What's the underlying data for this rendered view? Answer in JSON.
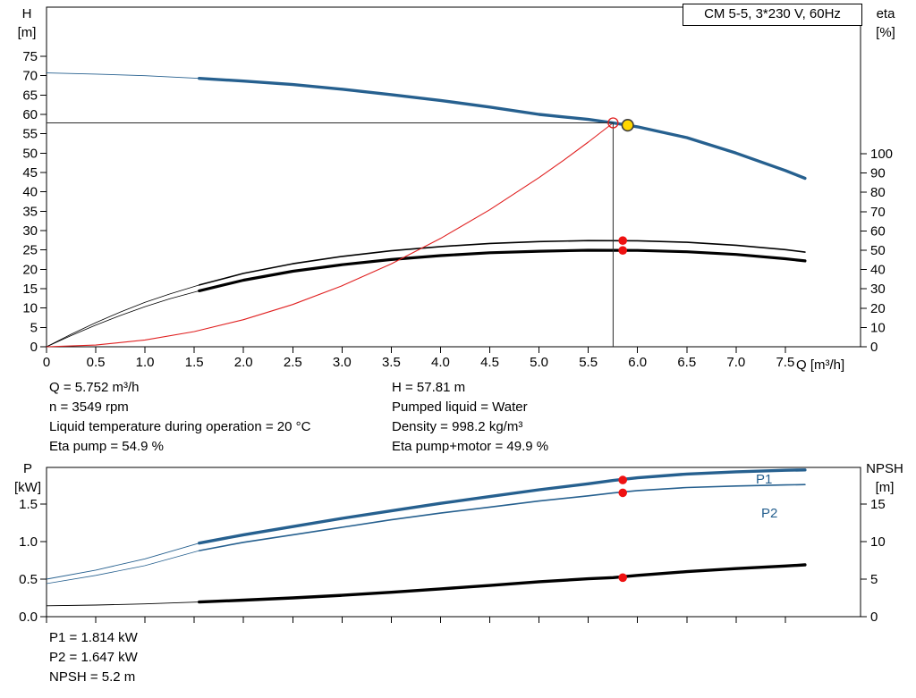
{
  "title_box": {
    "label": "CM 5-5, 3*230 V, 60Hz"
  },
  "colors": {
    "curve_blue": "#26608f",
    "curve_red": "#e02020",
    "marker_red": "#ee1111",
    "marker_yellow": "#ffd800",
    "marker_ring": "#3c3c3c",
    "line_black": "#000000",
    "duty_line": "#2a2a2a"
  },
  "duty_info": {
    "left": [
      "Q = 5.752 m³/h",
      "n = 3549 rpm",
      "Liquid temperature during operation = 20 °C",
      "Eta pump = 54.9 %"
    ],
    "right": [
      "H = 57.81 m",
      "Pumped liquid = Water",
      "Density = 998.2 kg/m³",
      "Eta pump+motor = 49.9 %"
    ]
  },
  "power_info": [
    "P1 = 1.814 kW",
    "P2 = 1.647 kW",
    "NPSH = 5.2 m"
  ],
  "series_labels": {
    "p1": "P1",
    "p2": "P2"
  },
  "chart_data": [
    {
      "type": "line",
      "title": "CM 5-5, 3*230 V, 60Hz",
      "x_axis": {
        "label": "Q [m³/h]",
        "min": 0,
        "max": 8.264,
        "show_labels": true,
        "ticks": [
          [
            0,
            "0"
          ],
          [
            0.5,
            "0.5"
          ],
          [
            1,
            "1.0"
          ],
          [
            1.5,
            "1.5"
          ],
          [
            2,
            "2.0"
          ],
          [
            2.5,
            "2.5"
          ],
          [
            3,
            "3.0"
          ],
          [
            3.5,
            "3.5"
          ],
          [
            4,
            "4.0"
          ],
          [
            4.5,
            "4.5"
          ],
          [
            5,
            "5.0"
          ],
          [
            5.5,
            "5.5"
          ],
          [
            6,
            "6.0"
          ],
          [
            6.5,
            "6.5"
          ],
          [
            7,
            "7.0"
          ],
          [
            7.5,
            "7.5"
          ]
        ]
      },
      "y_left": {
        "title": "H",
        "unit": "[m]",
        "min": 0,
        "max": 87.69,
        "ticks": [
          [
            0,
            "0"
          ],
          [
            5,
            "5"
          ],
          [
            10,
            "10"
          ],
          [
            15,
            "15"
          ],
          [
            20,
            "20"
          ],
          [
            25,
            "25"
          ],
          [
            30,
            "30"
          ],
          [
            35,
            "35"
          ],
          [
            40,
            "40"
          ],
          [
            45,
            "45"
          ],
          [
            50,
            "50"
          ],
          [
            55,
            "55"
          ],
          [
            60,
            "60"
          ],
          [
            65,
            "65"
          ],
          [
            70,
            "70"
          ],
          [
            75,
            "75"
          ]
        ]
      },
      "y_right": {
        "title": "eta",
        "unit": "[%]",
        "min": 0,
        "max": 175.9,
        "ticks": [
          [
            0,
            "0"
          ],
          [
            10,
            "10"
          ],
          [
            20,
            "20"
          ],
          [
            30,
            "30"
          ],
          [
            40,
            "40"
          ],
          [
            50,
            "50"
          ],
          [
            60,
            "60"
          ],
          [
            70,
            "70"
          ],
          [
            80,
            "80"
          ],
          [
            90,
            "90"
          ],
          [
            100,
            "100"
          ]
        ]
      },
      "duty_lines": {
        "q": 5.752,
        "v": 57.81,
        "axis": "left"
      },
      "series": [
        {
          "name": "eta-pump-curve",
          "axis": "right",
          "color": "#000000",
          "width": 1.6,
          "thin_width": 0.8,
          "thin_until": 1.55,
          "points": [
            [
              0,
              0
            ],
            [
              0.25,
              6.5
            ],
            [
              0.5,
              12.5
            ],
            [
              0.75,
              18
            ],
            [
              1,
              23
            ],
            [
              1.25,
              27.3
            ],
            [
              1.55,
              32
            ],
            [
              2,
              38
            ],
            [
              2.5,
              43
            ],
            [
              3,
              46.8
            ],
            [
              3.5,
              49.7
            ],
            [
              4,
              51.9
            ],
            [
              4.5,
              53.5
            ],
            [
              5,
              54.5
            ],
            [
              5.5,
              55.0
            ],
            [
              6,
              54.9
            ],
            [
              6.5,
              54.1
            ],
            [
              7,
              52.6
            ],
            [
              7.5,
              50.3
            ],
            [
              7.7,
              49.0
            ]
          ]
        },
        {
          "name": "eta-pump-motor-curve",
          "axis": "right",
          "color": "#000000",
          "width": 3.2,
          "thin_width": 0.8,
          "thin_until": 1.55,
          "points": [
            [
              0,
              0
            ],
            [
              0.25,
              5.8
            ],
            [
              0.5,
              11.2
            ],
            [
              0.75,
              16.2
            ],
            [
              1,
              20.8
            ],
            [
              1.25,
              24.8
            ],
            [
              1.55,
              29
            ],
            [
              2,
              34.5
            ],
            [
              2.5,
              39.1
            ],
            [
              3,
              42.5
            ],
            [
              3.5,
              45.2
            ],
            [
              4,
              47.2
            ],
            [
              4.5,
              48.7
            ],
            [
              5,
              49.5
            ],
            [
              5.5,
              50.0
            ],
            [
              6,
              49.9
            ],
            [
              6.5,
              49.2
            ],
            [
              7,
              47.8
            ],
            [
              7.5,
              45.6
            ],
            [
              7.7,
              44.5
            ]
          ]
        },
        {
          "name": "system-curve",
          "axis": "left",
          "color": "#e02020",
          "width": 1.1,
          "points": [
            [
              0,
              0
            ],
            [
              0.5,
              0.44
            ],
            [
              1,
              1.75
            ],
            [
              1.5,
              3.93
            ],
            [
              2,
              6.99
            ],
            [
              2.5,
              10.92
            ],
            [
              3,
              15.73
            ],
            [
              3.5,
              21.41
            ],
            [
              4,
              27.96
            ],
            [
              4.5,
              35.38
            ],
            [
              5,
              43.68
            ],
            [
              5.25,
              48.16
            ],
            [
              5.5,
              52.85
            ],
            [
              5.752,
              57.81
            ]
          ]
        },
        {
          "name": "pump-head-curve",
          "axis": "left",
          "color": "#26608f",
          "width": 3.4,
          "thin_width": 0.9,
          "thin_until": 1.55,
          "points": [
            [
              0,
              70.7
            ],
            [
              0.5,
              70.4
            ],
            [
              1,
              70.0
            ],
            [
              1.55,
              69.3
            ],
            [
              2,
              68.6
            ],
            [
              2.5,
              67.7
            ],
            [
              3,
              66.5
            ],
            [
              3.5,
              65.1
            ],
            [
              4,
              63.6
            ],
            [
              4.5,
              61.9
            ],
            [
              5,
              60.0
            ],
            [
              5.5,
              58.7
            ],
            [
              5.752,
              57.81
            ],
            [
              6,
              56.8
            ],
            [
              6.5,
              54.0
            ],
            [
              7,
              50.0
            ],
            [
              7.5,
              45.5
            ],
            [
              7.7,
              43.5
            ]
          ]
        }
      ],
      "markers": [
        {
          "name": "system-duty-circle",
          "q": 5.752,
          "v": 57.81,
          "axis": "left",
          "r": 5.5,
          "fill": "none",
          "stroke": "#e02020",
          "stroke_width": 1.3
        },
        {
          "name": "duty-point-marker",
          "q": 5.9,
          "v": 57.2,
          "axis": "left",
          "r": 6.3,
          "fill": "#ffd800",
          "stroke": "#3c3c3c",
          "stroke_width": 1.6
        },
        {
          "name": "eta-pump-duty-dot",
          "q": 5.85,
          "v": 55.0,
          "axis": "right",
          "r": 4.8,
          "fill": "#ee1111"
        },
        {
          "name": "eta-pump-motor-duty-dot",
          "q": 5.85,
          "v": 49.9,
          "axis": "right",
          "r": 4.8,
          "fill": "#ee1111"
        }
      ]
    },
    {
      "type": "line",
      "title": "",
      "x_axis": {
        "label": "",
        "min": 0,
        "max": 8.264,
        "show_labels": false,
        "ticks": [
          [
            0,
            ""
          ],
          [
            0.5,
            ""
          ],
          [
            1,
            ""
          ],
          [
            1.5,
            ""
          ],
          [
            2,
            ""
          ],
          [
            2.5,
            ""
          ],
          [
            3,
            ""
          ],
          [
            3.5,
            ""
          ],
          [
            4,
            ""
          ],
          [
            4.5,
            ""
          ],
          [
            5,
            ""
          ],
          [
            5.5,
            ""
          ],
          [
            6,
            ""
          ],
          [
            6.5,
            ""
          ],
          [
            7,
            ""
          ],
          [
            7.5,
            ""
          ]
        ]
      },
      "y_left": {
        "title": "P",
        "unit": "[kW]",
        "min": 0,
        "max": 1.988,
        "ticks": [
          [
            0,
            "0.0"
          ],
          [
            0.5,
            "0.5"
          ],
          [
            1,
            "1.0"
          ],
          [
            1.5,
            "1.5"
          ]
        ]
      },
      "y_right": {
        "title": "NPSH",
        "unit": "[m]",
        "min": 0,
        "max": 19.88,
        "ticks": [
          [
            0,
            "0"
          ],
          [
            5,
            "5"
          ],
          [
            10,
            "10"
          ],
          [
            15,
            "15"
          ]
        ]
      },
      "series": [
        {
          "name": "p1-power-curve",
          "axis": "left",
          "color": "#26608f",
          "width": 3.4,
          "thin_width": 0.9,
          "thin_until": 1.55,
          "points": [
            [
              0,
              0.5
            ],
            [
              0.5,
              0.62
            ],
            [
              1,
              0.77
            ],
            [
              1.55,
              0.98
            ],
            [
              2,
              1.09
            ],
            [
              2.5,
              1.2
            ],
            [
              3,
              1.31
            ],
            [
              3.5,
              1.41
            ],
            [
              4,
              1.51
            ],
            [
              4.5,
              1.6
            ],
            [
              5,
              1.69
            ],
            [
              5.5,
              1.77
            ],
            [
              5.752,
              1.814
            ],
            [
              6,
              1.85
            ],
            [
              6.5,
              1.9
            ],
            [
              7,
              1.93
            ],
            [
              7.5,
              1.95
            ],
            [
              7.7,
              1.955
            ]
          ]
        },
        {
          "name": "p2-power-curve",
          "axis": "left",
          "color": "#26608f",
          "width": 1.6,
          "thin_width": 0.8,
          "thin_until": 1.55,
          "points": [
            [
              0,
              0.44
            ],
            [
              0.5,
              0.55
            ],
            [
              1,
              0.68
            ],
            [
              1.55,
              0.88
            ],
            [
              2,
              0.99
            ],
            [
              2.5,
              1.09
            ],
            [
              3,
              1.19
            ],
            [
              3.5,
              1.29
            ],
            [
              4,
              1.38
            ],
            [
              4.5,
              1.46
            ],
            [
              5,
              1.54
            ],
            [
              5.5,
              1.61
            ],
            [
              5.752,
              1.647
            ],
            [
              6,
              1.68
            ],
            [
              6.5,
              1.72
            ],
            [
              7,
              1.74
            ],
            [
              7.5,
              1.755
            ],
            [
              7.7,
              1.76
            ]
          ]
        },
        {
          "name": "npsh-curve",
          "axis": "right",
          "color": "#000000",
          "width": 3.4,
          "thin_width": 0.9,
          "thin_until": 1.55,
          "points": [
            [
              0,
              1.45
            ],
            [
              0.5,
              1.55
            ],
            [
              1,
              1.7
            ],
            [
              1.55,
              1.95
            ],
            [
              2,
              2.2
            ],
            [
              2.5,
              2.5
            ],
            [
              3,
              2.85
            ],
            [
              3.5,
              3.25
            ],
            [
              4,
              3.7
            ],
            [
              4.5,
              4.15
            ],
            [
              5,
              4.65
            ],
            [
              5.5,
              5.05
            ],
            [
              5.752,
              5.2
            ],
            [
              6,
              5.5
            ],
            [
              6.5,
              6.0
            ],
            [
              7,
              6.4
            ],
            [
              7.5,
              6.75
            ],
            [
              7.7,
              6.9
            ]
          ]
        }
      ],
      "markers": [
        {
          "name": "p1-duty-dot",
          "q": 5.85,
          "v": 1.82,
          "axis": "left",
          "r": 4.8,
          "fill": "#ee1111"
        },
        {
          "name": "p2-duty-dot",
          "q": 5.85,
          "v": 1.65,
          "axis": "left",
          "r": 4.8,
          "fill": "#ee1111"
        },
        {
          "name": "npsh-duty-dot",
          "q": 5.85,
          "v": 5.2,
          "axis": "right",
          "r": 4.8,
          "fill": "#ee1111"
        }
      ]
    }
  ]
}
